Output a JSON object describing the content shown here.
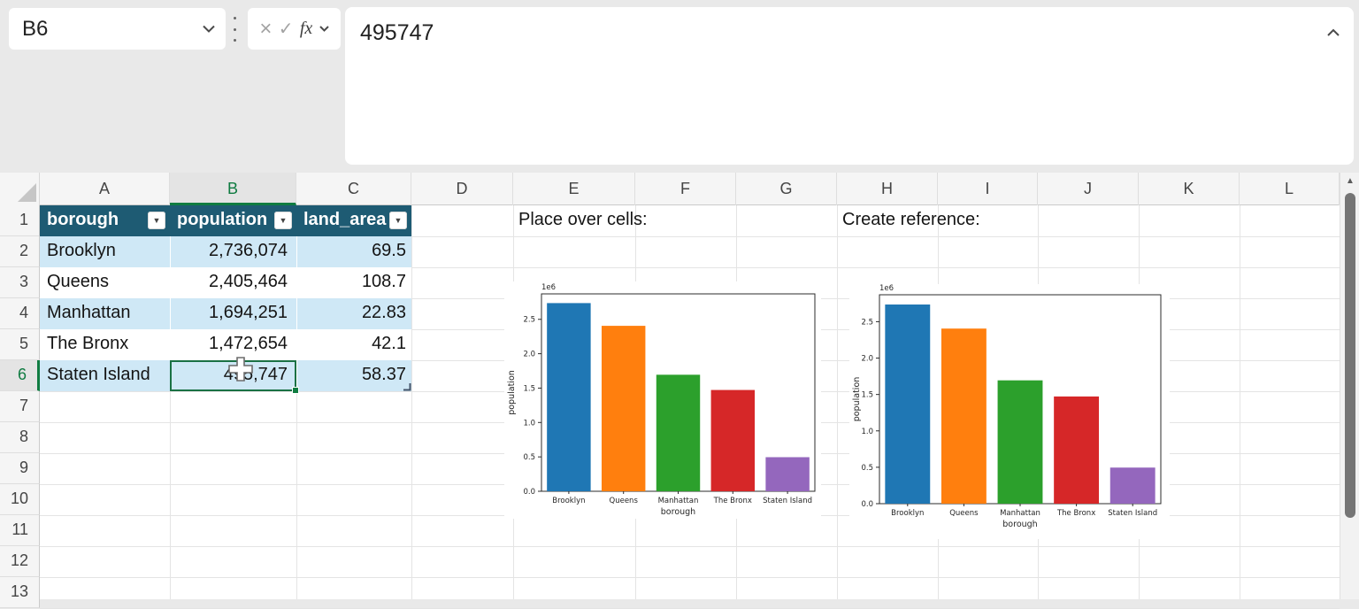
{
  "app": {
    "name_box": "B6",
    "formula_value": "495747"
  },
  "icons": {
    "cancel": "×",
    "confirm": "✓",
    "function": "fx",
    "filter_arrow": "▼",
    "scroll_up_arrow": "▲"
  },
  "sheet": {
    "column_letters": [
      "A",
      "B",
      "C",
      "D",
      "E",
      "F",
      "G",
      "H",
      "I",
      "J",
      "K",
      "L"
    ],
    "row_numbers": [
      "1",
      "2",
      "3",
      "4",
      "5",
      "6",
      "7",
      "8",
      "9",
      "10",
      "11",
      "12",
      "13"
    ],
    "selected": {
      "cell": "B6",
      "column": "B",
      "row": "6"
    },
    "table": {
      "headers": [
        "borough",
        "population",
        "land_area"
      ],
      "rows": [
        [
          "Brooklyn",
          "2,736,074",
          "69.5"
        ],
        [
          "Queens",
          "2,405,464",
          "108.7"
        ],
        [
          "Manhattan",
          "1,694,251",
          "22.83"
        ],
        [
          "The Bronx",
          "1,472,654",
          "42.1"
        ],
        [
          "Staten Island",
          "495,747",
          "58.37"
        ]
      ]
    },
    "annotations": {
      "place_over_cells": "Place over cells:",
      "create_reference": "Create reference:"
    }
  },
  "chart_data": [
    {
      "type": "bar",
      "title": "",
      "categories": [
        "Brooklyn",
        "Queens",
        "Manhattan",
        "The Bronx",
        "Staten Island"
      ],
      "values": [
        2736074,
        2405464,
        1694251,
        1472654,
        495747
      ],
      "bar_colors": [
        "#1f77b4",
        "#ff7f0e",
        "#2ca02c",
        "#d62728",
        "#9467bd"
      ],
      "xlabel": "borough",
      "ylabel": "population",
      "offset_label": "1e6",
      "yticks": [
        0.0,
        0.5,
        1.0,
        1.5,
        2.0,
        2.5
      ],
      "ytick_scale": 1000000,
      "ylim": [
        0,
        2870000
      ],
      "grid": false,
      "legend": "none"
    },
    {
      "type": "bar",
      "title": "",
      "categories": [
        "Brooklyn",
        "Queens",
        "Manhattan",
        "The Bronx",
        "Staten Island"
      ],
      "values": [
        2736074,
        2405464,
        1694251,
        1472654,
        495747
      ],
      "bar_colors": [
        "#1f77b4",
        "#ff7f0e",
        "#2ca02c",
        "#d62728",
        "#9467bd"
      ],
      "xlabel": "borough",
      "ylabel": "population",
      "offset_label": "1e6",
      "yticks": [
        0.0,
        0.5,
        1.0,
        1.5,
        2.0,
        2.5
      ],
      "ytick_scale": 1000000,
      "ylim": [
        0,
        2870000
      ],
      "grid": false,
      "legend": "none"
    }
  ],
  "colors": {
    "table_header": "#1e5b73",
    "band_blue": "#cfe8f6",
    "selection_green": "#107c41",
    "accent_text_green": "#0f7b41"
  }
}
